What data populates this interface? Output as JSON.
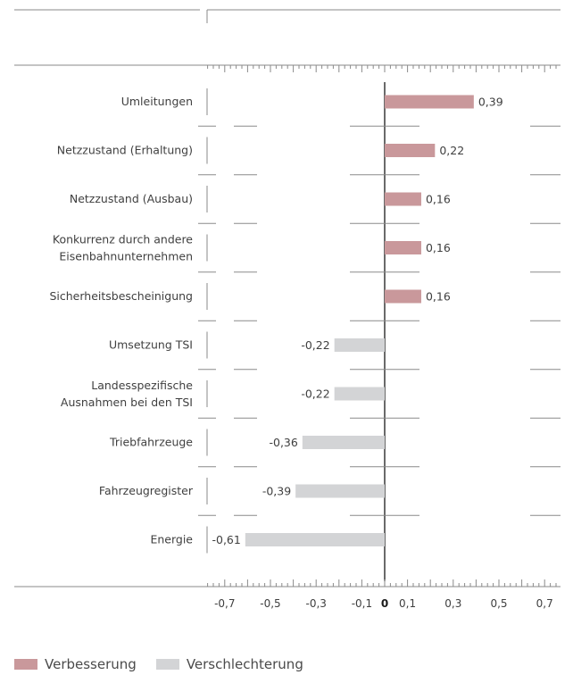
{
  "colors": {
    "positive": "#c9989b",
    "negative": "#d3d4d6",
    "axis": "#8a8a8a",
    "zero": "#2a2a2a"
  },
  "legend": [
    {
      "key": "positive",
      "label": "Verbesserung"
    },
    {
      "key": "negative",
      "label": "Verschlechterung"
    }
  ],
  "chart_data": {
    "type": "bar",
    "orientation": "horizontal",
    "title": "",
    "xlabel": "",
    "ylabel": "",
    "xlim": [
      -0.8,
      0.8
    ],
    "grid": false,
    "legend_position": "bottom-left",
    "tick_values": [
      -0.7,
      -0.5,
      -0.3,
      -0.1,
      0,
      0.1,
      0.3,
      0.5,
      0.7
    ],
    "tick_labels": [
      "-0,7",
      "-0,5",
      "-0,3",
      "-0,1",
      "0",
      "0,1",
      "0,3",
      "0,5",
      "0,7"
    ],
    "categories": [
      [
        "Umleitungen"
      ],
      [
        "Netzzustand (Erhaltung)"
      ],
      [
        "Netzzustand (Ausbau)"
      ],
      [
        "Konkurrenz durch andere",
        "Eisenbahnunternehmen"
      ],
      [
        "Sicherheitsbescheinigung"
      ],
      [
        "Umsetzung TSI"
      ],
      [
        "Landesspezifische",
        "Ausnahmen bei den TSI"
      ],
      [
        "Triebfahrzeuge"
      ],
      [
        "Fahrzeugregister"
      ],
      [
        "Energie"
      ]
    ],
    "values": [
      0.39,
      0.22,
      0.16,
      0.16,
      0.16,
      -0.22,
      -0.22,
      -0.36,
      -0.39,
      -0.61
    ],
    "value_labels": [
      "0,39",
      "0,22",
      "0,16",
      "0,16",
      "0,16",
      "-0,22",
      "-0,22",
      "-0,36",
      "-0,39",
      "-0,61"
    ]
  }
}
